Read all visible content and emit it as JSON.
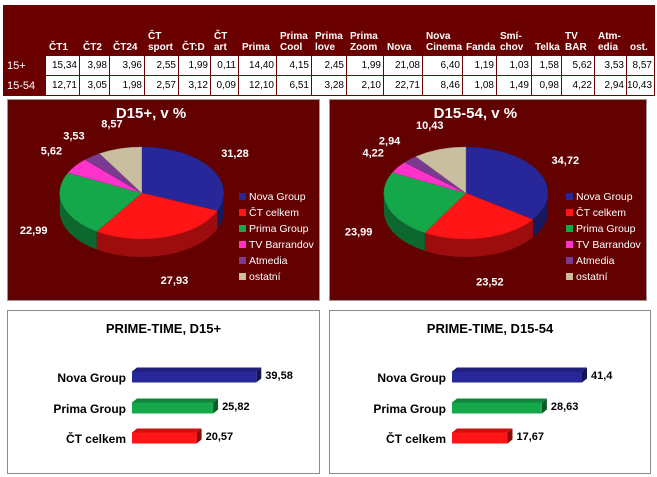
{
  "table": {
    "columns": [
      "ČT1",
      "ČT2",
      "ČT24",
      "ČT sport",
      "ČT:D",
      "ČT art",
      "Prima",
      "Prima Cool",
      "Prima love",
      "Prima Zoom",
      "Nova",
      "Nova Cinema",
      "Fanda",
      "Smí-chov",
      "Telka",
      "TV BAR",
      "Atm-edia",
      "ost."
    ],
    "rows": [
      {
        "label": "15+",
        "values": [
          "15,34",
          "3,98",
          "3,96",
          "2,55",
          "1,99",
          "0,11",
          "14,40",
          "4,15",
          "2,45",
          "1,99",
          "21,08",
          "6,40",
          "1,19",
          "1,03",
          "1,58",
          "5,62",
          "3,53",
          "8,57"
        ]
      },
      {
        "label": "15-54",
        "values": [
          "12,71",
          "3,05",
          "1,98",
          "2,57",
          "3,12",
          "0,09",
          "12,10",
          "6,51",
          "3,28",
          "2,10",
          "22,71",
          "8,46",
          "1,08",
          "1,49",
          "0,98",
          "4,22",
          "2,94",
          "10,43"
        ]
      }
    ]
  },
  "colors": {
    "nova": "#27279a",
    "ct": "#ff1515",
    "prima": "#14a84b",
    "barrandov": "#ff33cc",
    "atmedia": "#7a3a8f",
    "ostatni": "#c9bea0",
    "panel_bg": "#630000",
    "header_bg": "#6b0000"
  },
  "chart_data": [
    {
      "type": "pie",
      "title": "D15+, v %",
      "categories": [
        "Nova Group",
        "ČT celkem",
        "Prima Group",
        "TV Barrandov",
        "Atmedia",
        "ostatní"
      ],
      "values": [
        31.28,
        27.93,
        22.99,
        5.62,
        3.53,
        8.57
      ],
      "labels": [
        "31,28",
        "27,93",
        "22,99",
        "5,62",
        "3,53",
        "8,57"
      ],
      "legend": "right"
    },
    {
      "type": "pie",
      "title": "D15-54, v %",
      "categories": [
        "Nova Group",
        "ČT celkem",
        "Prima Group",
        "TV Barrandov",
        "Atmedia",
        "ostatní"
      ],
      "values": [
        34.72,
        23.52,
        23.99,
        4.22,
        2.94,
        10.43
      ],
      "labels": [
        "34,72",
        "23,52",
        "23,99",
        "4,22",
        "2,94",
        "10,43"
      ],
      "legend": "right"
    },
    {
      "type": "bar",
      "title": "PRIME-TIME, D15+",
      "categories": [
        "Nova Group",
        "Prima Group",
        "ČT celkem"
      ],
      "values": [
        39.58,
        25.82,
        20.57
      ],
      "labels": [
        "39,58",
        "25,82",
        "20,57"
      ],
      "orientation": "horizontal"
    },
    {
      "type": "bar",
      "title": "PRIME-TIME, D15-54",
      "categories": [
        "Nova Group",
        "Prima Group",
        "ČT celkem"
      ],
      "values": [
        41.4,
        28.63,
        17.67
      ],
      "labels": [
        "41,4",
        "28,63",
        "17,67"
      ],
      "orientation": "horizontal"
    }
  ]
}
